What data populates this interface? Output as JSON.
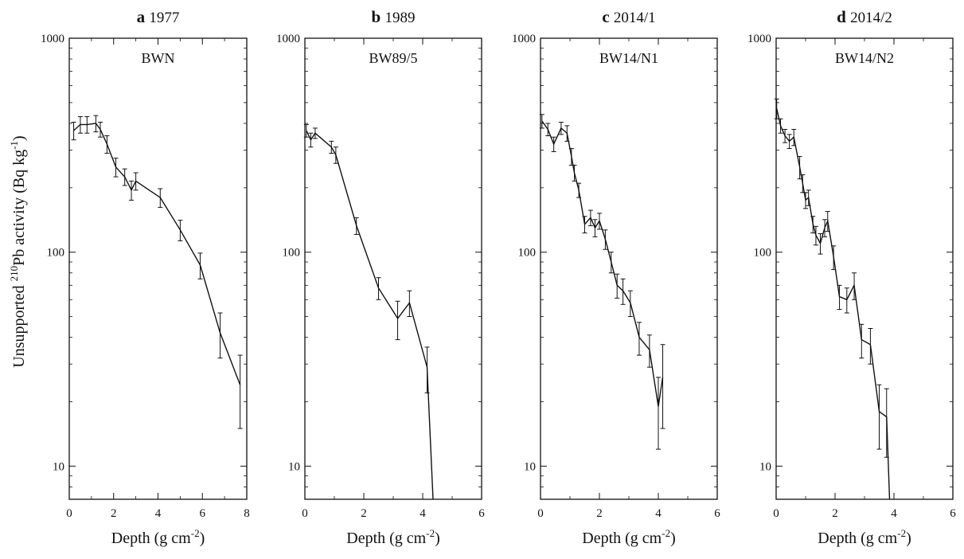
{
  "figure": {
    "ylabel_pre": "Unsupported ",
    "ylabel_sup": "210",
    "ylabel_mid": "Pb activity (Bq kg",
    "ylabel_sup2": "-1",
    "ylabel_post": ")",
    "xlabel_pre": "Depth  (g cm",
    "xlabel_sup": "-2",
    "xlabel_post": ")"
  },
  "chart_data": [
    {
      "type": "line",
      "panel": "a",
      "title": "1977",
      "core_label": "BWN",
      "xlabel": "Depth (g cm-2)",
      "ylabel": "Unsupported 210Pb activity (Bq kg-1)",
      "xlim": [
        0,
        8
      ],
      "xticks": [
        0,
        2,
        4,
        6,
        8
      ],
      "ylim": [
        7,
        1000
      ],
      "yscale": "log",
      "yticks": [
        10,
        100,
        1000
      ],
      "grid": false,
      "series": [
        {
          "x": [
            0.2,
            0.5,
            0.8,
            1.2,
            1.4,
            1.7,
            2.1,
            2.5,
            2.8,
            3.0,
            4.1,
            5.0,
            5.9,
            6.8,
            7.7
          ],
          "y": [
            370,
            395,
            395,
            400,
            375,
            320,
            250,
            225,
            195,
            215,
            180,
            127,
            87,
            42,
            24
          ],
          "err": [
            35,
            35,
            35,
            35,
            30,
            30,
            25,
            20,
            20,
            20,
            18,
            14,
            12,
            10,
            9
          ]
        }
      ]
    },
    {
      "type": "line",
      "panel": "b",
      "title": "1989",
      "core_label": "BW89/5",
      "xlabel": "Depth (g cm-2)",
      "ylabel": "Unsupported 210Pb activity (Bq kg-1)",
      "xlim": [
        0,
        6
      ],
      "xticks": [
        0,
        2,
        4,
        6
      ],
      "ylim": [
        7,
        1000
      ],
      "yscale": "log",
      "yticks": [
        10,
        100,
        1000
      ],
      "grid": false,
      "series": [
        {
          "x": [
            0.05,
            0.2,
            0.35,
            0.9,
            1.05,
            1.75,
            2.5,
            3.15,
            3.55,
            4.15,
            4.35
          ],
          "y": [
            370,
            335,
            360,
            310,
            285,
            133,
            68,
            49,
            58,
            29,
            7
          ],
          "err": [
            25,
            25,
            20,
            20,
            25,
            12,
            8,
            10,
            8,
            7,
            0
          ]
        }
      ]
    },
    {
      "type": "line",
      "panel": "c",
      "title": "2014/1",
      "core_label": "BW14/N1",
      "xlabel": "Depth (g cm-2)",
      "ylabel": "Unsupported 210Pb activity (Bq kg-1)",
      "xlim": [
        0,
        6
      ],
      "xticks": [
        0,
        2,
        4,
        6
      ],
      "ylim": [
        7,
        1000
      ],
      "yscale": "log",
      "yticks": [
        10,
        100,
        1000
      ],
      "grid": false,
      "series": [
        {
          "x": [
            0.05,
            0.25,
            0.45,
            0.7,
            0.9,
            1.05,
            1.15,
            1.3,
            1.5,
            1.7,
            1.85,
            2.0,
            2.2,
            2.4,
            2.6,
            2.8,
            3.05,
            3.35,
            3.7,
            4.0,
            4.15
          ],
          "y": [
            410,
            375,
            320,
            380,
            360,
            280,
            235,
            195,
            135,
            145,
            130,
            140,
            115,
            90,
            70,
            66,
            58,
            40,
            35,
            19,
            26
          ],
          "err": [
            30,
            25,
            25,
            25,
            30,
            25,
            20,
            15,
            12,
            12,
            12,
            12,
            12,
            10,
            9,
            9,
            8,
            7,
            6,
            7,
            11
          ]
        }
      ]
    },
    {
      "type": "line",
      "panel": "d",
      "title": "2014/2",
      "core_label": "BW14/N2",
      "xlabel": "Depth (g cm-2)",
      "ylabel": "Unsupported 210Pb activity (Bq kg-1)",
      "xlim": [
        0,
        6
      ],
      "xticks": [
        0,
        2,
        4,
        6
      ],
      "ylim": [
        7,
        1000
      ],
      "yscale": "log",
      "yticks": [
        10,
        100,
        1000
      ],
      "grid": false,
      "series": [
        {
          "x": [
            0.02,
            0.15,
            0.3,
            0.45,
            0.6,
            0.8,
            0.9,
            1.0,
            1.1,
            1.25,
            1.35,
            1.5,
            1.65,
            1.75,
            1.95,
            2.15,
            2.4,
            2.65,
            2.9,
            3.2,
            3.5,
            3.75,
            3.85
          ],
          "y": [
            470,
            390,
            350,
            330,
            345,
            250,
            210,
            175,
            180,
            135,
            120,
            110,
            130,
            140,
            95,
            62,
            60,
            70,
            39,
            37,
            18,
            17,
            7
          ],
          "err": [
            50,
            30,
            25,
            25,
            30,
            30,
            20,
            15,
            15,
            12,
            12,
            12,
            12,
            15,
            12,
            8,
            8,
            10,
            7,
            7,
            6,
            6,
            0
          ]
        }
      ]
    }
  ]
}
